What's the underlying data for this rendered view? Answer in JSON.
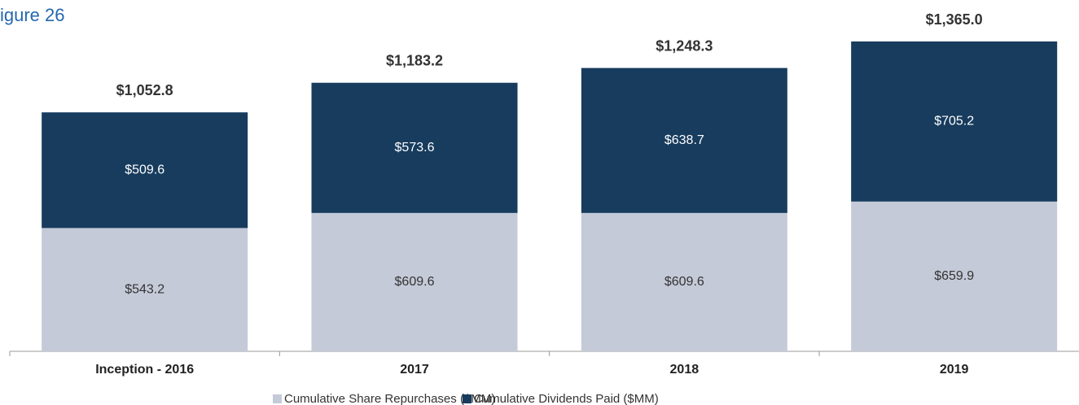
{
  "chart_data": {
    "type": "stacked_bar",
    "title": "igure 26",
    "categories": [
      "Inception - 2016",
      "2017",
      "2018",
      "2019"
    ],
    "series": [
      {
        "name": "Cumulative Share Repurchases ($MM)",
        "color": "#c5cad8",
        "values": [
          543.2,
          609.6,
          609.6,
          659.9
        ],
        "value_labels": [
          "$543.2",
          "$609.6",
          "$609.6",
          "$659.9"
        ]
      },
      {
        "name": "Cumulative Dividends Paid ($MM)",
        "color": "#173c5e",
        "values": [
          509.6,
          573.6,
          638.7,
          705.2
        ],
        "value_labels": [
          "$509.6",
          "$573.6",
          "$638.7",
          "$705.2"
        ]
      }
    ],
    "totals": [
      1052.8,
      1183.2,
      1248.3,
      1365.0
    ],
    "total_labels": [
      "$1,052.8",
      "$1,183.2",
      "$1,248.3",
      "$1,365.0"
    ],
    "legend": "bottom"
  }
}
